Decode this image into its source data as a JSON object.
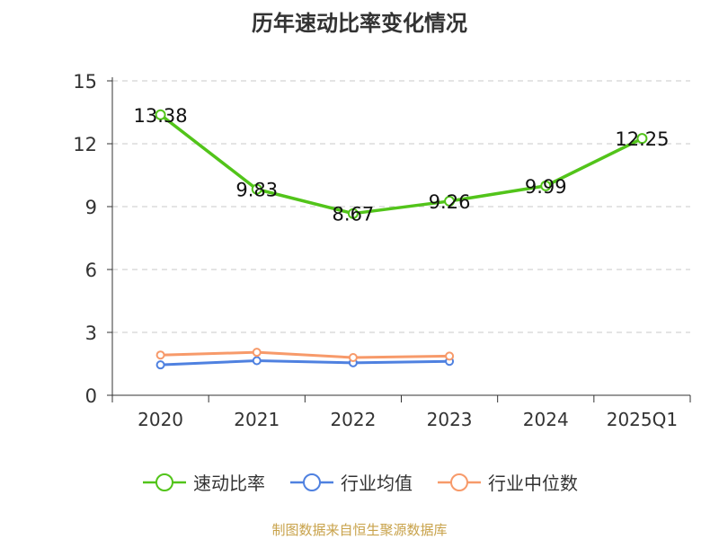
{
  "title": "历年速动比率变化情况",
  "source": "制图数据来自恒生聚源数据库",
  "chart_data": {
    "type": "line",
    "categories": [
      "2020",
      "2021",
      "2022",
      "2023",
      "2024",
      "2025Q1"
    ],
    "ylim": [
      0,
      15
    ],
    "yticks": [
      0,
      3,
      6,
      9,
      12,
      15
    ],
    "grid": true,
    "legend_position": "bottom",
    "series": [
      {
        "name": "速动比率",
        "color": "#52c41a",
        "values": [
          13.38,
          9.83,
          8.67,
          9.26,
          9.99,
          12.25
        ],
        "labels": [
          "13.38",
          "9.83",
          "8.67",
          "9.26",
          "9.99",
          "12.25"
        ]
      },
      {
        "name": "行业均值",
        "color": "#4f81e0",
        "values": [
          1.45,
          1.65,
          1.55,
          1.62,
          null,
          null
        ]
      },
      {
        "name": "行业中位数",
        "color": "#f79a6a",
        "values": [
          1.92,
          2.05,
          1.8,
          1.87,
          null,
          null
        ]
      }
    ]
  }
}
